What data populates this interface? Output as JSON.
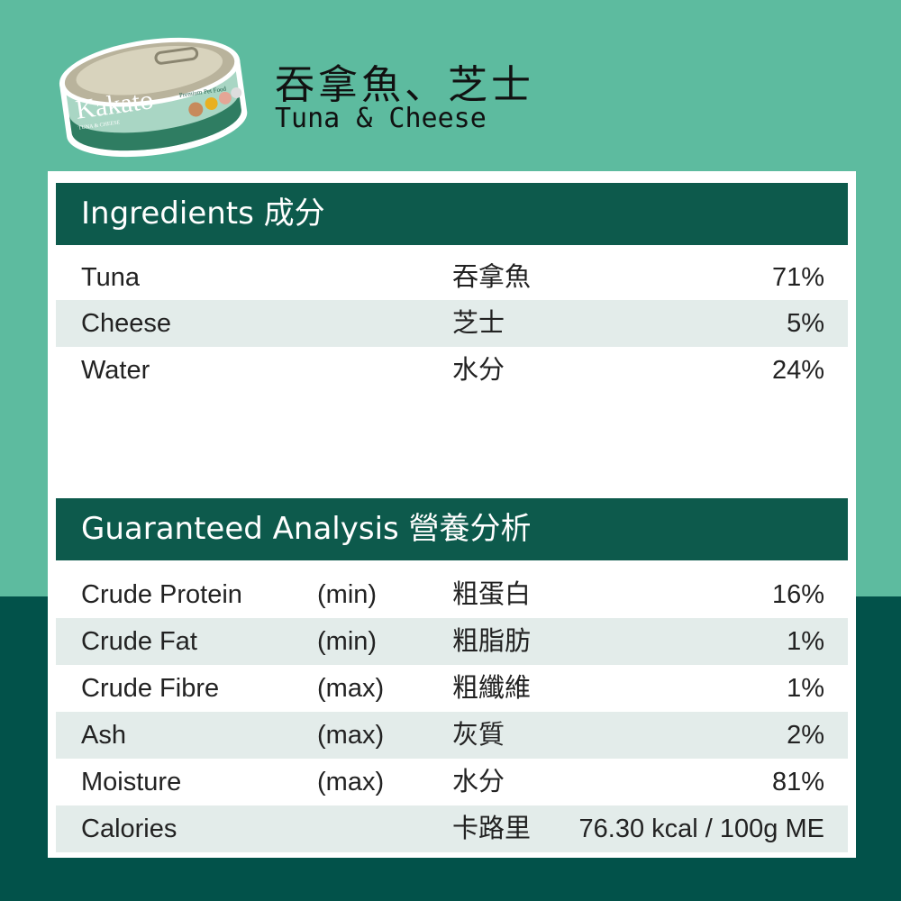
{
  "product": {
    "brand": "Kakato",
    "can_text": "Premium Pet Food",
    "can_flavor": "TUNA & CHEESE",
    "title_cn": "吞拿魚、芝士",
    "title_en": "Tuna & Cheese"
  },
  "colors": {
    "background_top": "#5dbb9f",
    "background_bottom": "#02524a",
    "header_bar": "#0d5a4c",
    "row_stripe": "#e3ecea"
  },
  "ingredients": {
    "title": "Ingredients 成分",
    "rows": [
      {
        "en": "Tuna",
        "cn": "吞拿魚",
        "value": "71%"
      },
      {
        "en": "Cheese",
        "cn": "芝士",
        "value": "5%"
      },
      {
        "en": "Water",
        "cn": "水分",
        "value": "24%"
      }
    ]
  },
  "analysis": {
    "title": "Guaranteed Analysis 營養分析",
    "rows": [
      {
        "en": "Crude Protein",
        "qualifier": "(min)",
        "cn": "粗蛋白",
        "value": "16%"
      },
      {
        "en": "Crude Fat",
        "qualifier": "(min)",
        "cn": "粗脂肪",
        "value": "1%"
      },
      {
        "en": "Crude Fibre",
        "qualifier": "(max)",
        "cn": "粗纖維",
        "value": "1%"
      },
      {
        "en": "Ash",
        "qualifier": "(max)",
        "cn": "灰質",
        "value": "2%"
      },
      {
        "en": "Moisture",
        "qualifier": "(max)",
        "cn": "水分",
        "value": "81%"
      },
      {
        "en": "Calories",
        "qualifier": "",
        "cn": "卡路里",
        "value": "76.30 kcal / 100g ME"
      }
    ]
  }
}
